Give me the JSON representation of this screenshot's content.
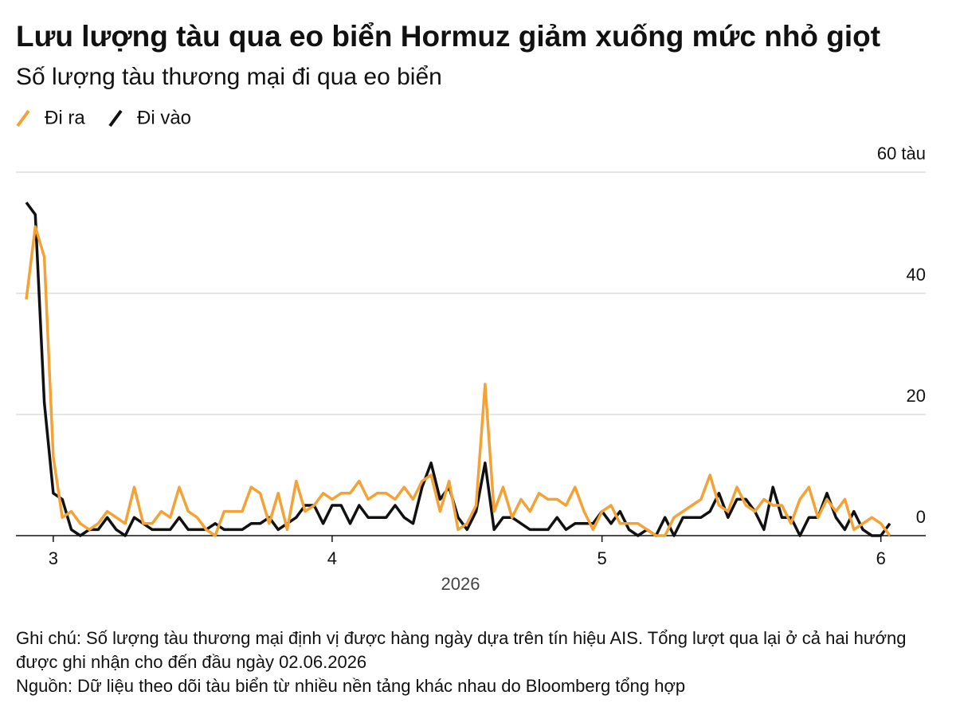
{
  "chart_data": {
    "type": "line",
    "title": "Lưu lượng tàu qua eo biển Hormuz giảm xuống mức nhỏ giọt",
    "subtitle": "Số lượng tàu thương mại đi qua eo biển",
    "x_label": "2026",
    "categories": [
      null,
      null,
      null,
      "3",
      null,
      null,
      null,
      null,
      null,
      null,
      null,
      null,
      null,
      null,
      null,
      null,
      null,
      null,
      null,
      null,
      null,
      null,
      null,
      null,
      null,
      null,
      null,
      null,
      null,
      null,
      null,
      null,
      null,
      null,
      "4",
      null,
      null,
      null,
      null,
      null,
      null,
      null,
      null,
      null,
      null,
      null,
      null,
      null,
      null,
      null,
      null,
      null,
      null,
      null,
      null,
      null,
      null,
      null,
      null,
      null,
      null,
      null,
      null,
      null,
      "5",
      null,
      null,
      null,
      null,
      null,
      null,
      null,
      null,
      null,
      null,
      null,
      null,
      null,
      null,
      null,
      null,
      null,
      null,
      null,
      null,
      null,
      null,
      null,
      null,
      null,
      null,
      null,
      null,
      null,
      null,
      "6",
      null
    ],
    "series": [
      {
        "name": "Đi ra",
        "color": "#f4a236",
        "values": [
          39,
          51,
          46,
          13,
          3,
          4,
          2,
          1,
          2,
          4,
          3,
          2,
          8,
          2,
          2,
          4,
          3,
          8,
          4,
          3,
          1,
          0,
          4,
          4,
          4,
          8,
          7,
          2,
          7,
          1,
          9,
          4,
          5,
          7,
          6,
          7,
          7,
          9,
          6,
          7,
          7,
          6,
          8,
          6,
          9,
          10,
          4,
          9,
          1,
          2,
          5,
          25,
          4,
          8,
          3,
          6,
          4,
          7,
          6,
          6,
          5,
          8,
          4,
          1,
          4,
          5,
          2,
          2,
          2,
          1,
          0,
          0,
          3,
          4,
          5,
          6,
          10,
          5,
          4,
          8,
          5,
          4,
          6,
          5,
          5,
          2,
          6,
          8,
          3,
          6,
          4,
          6,
          1,
          2,
          3,
          2,
          0
        ]
      },
      {
        "name": "Đi vào",
        "color": "#111111",
        "values": [
          55,
          53,
          22,
          7,
          6,
          1,
          0,
          1,
          1,
          3,
          1,
          0,
          3,
          2,
          1,
          1,
          1,
          3,
          1,
          1,
          1,
          2,
          1,
          1,
          1,
          2,
          2,
          3,
          1,
          2,
          3,
          5,
          5,
          2,
          5,
          5,
          2,
          5,
          3,
          3,
          3,
          5,
          3,
          2,
          8,
          12,
          6,
          8,
          3,
          1,
          4,
          12,
          1,
          3,
          3,
          2,
          1,
          1,
          1,
          3,
          1,
          2,
          2,
          2,
          4,
          2,
          4,
          1,
          0,
          1,
          0,
          3,
          0,
          3,
          3,
          3,
          4,
          7,
          3,
          6,
          6,
          4,
          1,
          8,
          3,
          3,
          0,
          3,
          3,
          7,
          3,
          1,
          4,
          1,
          0,
          0,
          2
        ]
      }
    ],
    "ylim": [
      0,
      60
    ],
    "yticks": [
      0,
      20,
      40,
      {
        "value": 60,
        "label": "60 tàu"
      }
    ],
    "grid": true
  },
  "notes": [
    "Ghi chú: Số lượng tàu thương mại định vị được hàng ngày dựa trên tín hiệu AIS. Tổng lượt qua lại ở cả hai hướng được ghi nhận cho đến đầu ngày 02.06.2026",
    "Nguồn: Dữ liệu theo dõi tàu biển từ nhiều nền tảng khác nhau do Bloomberg tổng hợp"
  ]
}
